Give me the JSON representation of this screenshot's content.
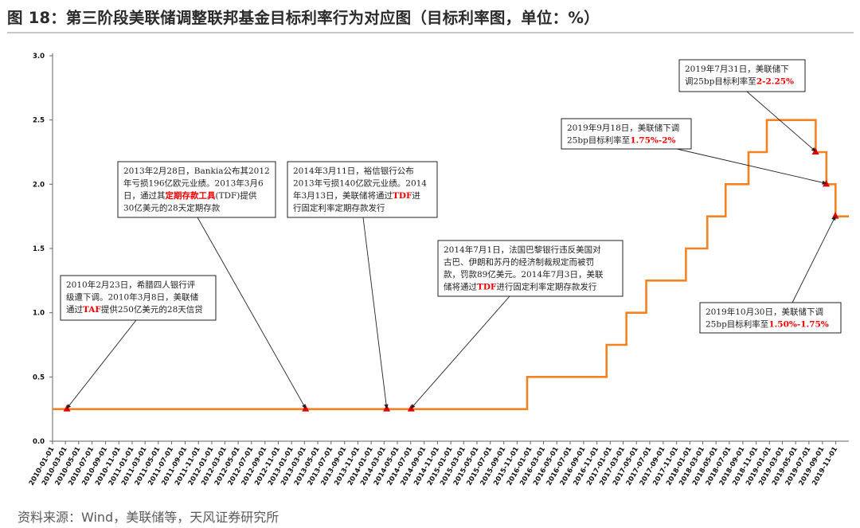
{
  "title": "图 18：第三阶段美联储调整联邦基金目标利率行为对应图（目标利率图，单位：%）",
  "source": "资料来源：Wind，美联储等，天风证券研究所",
  "colors": {
    "line": "#f58220",
    "marker": "#e00000",
    "highlight": "#e00000",
    "arrow": "#222222"
  },
  "chart_data": {
    "type": "line",
    "xlabel": "",
    "ylabel": "",
    "ylim": [
      0.0,
      3.0
    ],
    "yticks": [
      "0.0",
      "0.5",
      "1.0",
      "1.5",
      "2.0",
      "2.5",
      "3.0"
    ],
    "xlim": [
      "2010-01-01",
      "2019-12-31"
    ],
    "xticks": [
      "2010-01-01",
      "2010-03-01",
      "2010-05-01",
      "2010-07-01",
      "2010-09-01",
      "2010-11-01",
      "2011-01-01",
      "2011-03-01",
      "2011-05-01",
      "2011-07-01",
      "2011-09-01",
      "2011-11-01",
      "2012-01-01",
      "2012-03-01",
      "2012-05-01",
      "2012-07-01",
      "2012-09-01",
      "2012-11-01",
      "2013-01-01",
      "2013-03-01",
      "2013-05-01",
      "2013-07-01",
      "2013-09-01",
      "2013-11-01",
      "2014-01-01",
      "2014-03-01",
      "2014-05-01",
      "2014-07-01",
      "2014-09-01",
      "2014-11-01",
      "2015-01-01",
      "2015-03-01",
      "2015-05-01",
      "2015-07-01",
      "2015-09-01",
      "2015-11-01",
      "2016-01-01",
      "2016-03-01",
      "2016-05-01",
      "2016-07-01",
      "2016-09-01",
      "2016-11-01",
      "2017-01-01",
      "2017-03-01",
      "2017-05-01",
      "2017-07-01",
      "2017-09-01",
      "2017-11-01",
      "2018-01-01",
      "2018-03-01",
      "2018-05-01",
      "2018-07-01",
      "2018-09-01",
      "2018-11-01",
      "2019-01-01",
      "2019-03-01",
      "2019-05-01",
      "2019-07-01",
      "2019-09-01",
      "2019-11-01"
    ],
    "series": [
      {
        "name": "",
        "steps": [
          {
            "date": "2010-01-01",
            "value": 0.25
          },
          {
            "date": "2015-12-17",
            "value": 0.5
          },
          {
            "date": "2016-12-15",
            "value": 0.75
          },
          {
            "date": "2017-03-16",
            "value": 1.0
          },
          {
            "date": "2017-06-15",
            "value": 1.25
          },
          {
            "date": "2017-12-14",
            "value": 1.5
          },
          {
            "date": "2018-03-22",
            "value": 1.75
          },
          {
            "date": "2018-06-14",
            "value": 2.0
          },
          {
            "date": "2018-09-27",
            "value": 2.25
          },
          {
            "date": "2018-12-20",
            "value": 2.5
          },
          {
            "date": "2019-08-01",
            "value": 2.25
          },
          {
            "date": "2019-09-19",
            "value": 2.0
          },
          {
            "date": "2019-10-31",
            "value": 1.75
          },
          {
            "date": "2019-12-31",
            "value": 1.75
          }
        ]
      }
    ],
    "markers": [
      {
        "date": "2010-03-08",
        "value": 0.25
      },
      {
        "date": "2013-03-06",
        "value": 0.25
      },
      {
        "date": "2014-03-13",
        "value": 0.25
      },
      {
        "date": "2014-07-03",
        "value": 0.25
      },
      {
        "date": "2019-07-31",
        "value": 2.25
      },
      {
        "date": "2019-09-18",
        "value": 2.0
      },
      {
        "date": "2019-10-30",
        "value": 1.75
      }
    ],
    "annotations": [
      {
        "target": 0,
        "lines": [
          [
            [
              "2010年2月23日，希腊四人银行评",
              false
            ]
          ],
          [
            [
              "级遭下调。2010年3月8日，美联储",
              false
            ]
          ],
          [
            [
              "通过",
              false
            ],
            [
              "TAF",
              true
            ],
            [
              "提供250亿美元的28天信贷",
              false
            ]
          ]
        ]
      },
      {
        "target": 1,
        "lines": [
          [
            [
              "2013年2月28日，Bankia公布其2012",
              false
            ]
          ],
          [
            [
              "年亏损196亿欧元业绩。2013年3月6",
              false
            ]
          ],
          [
            [
              "日，通过其",
              false
            ],
            [
              "定期存款工具",
              true
            ],
            [
              "(TDF)提供",
              false
            ]
          ],
          [
            [
              "30亿美元的28天定期存款",
              false
            ]
          ]
        ]
      },
      {
        "target": 2,
        "lines": [
          [
            [
              "2014年3月11日，裕信银行公布",
              false
            ]
          ],
          [
            [
              "2013年亏损140亿欧元业绩。2014",
              false
            ]
          ],
          [
            [
              "年3月13日，美联储将通过",
              false
            ],
            [
              "TDF",
              true
            ],
            [
              "进",
              false
            ]
          ],
          [
            [
              "行固定利率定期存款发行",
              false
            ]
          ]
        ]
      },
      {
        "target": 3,
        "lines": [
          [
            [
              "2014年7月1日，法国巴黎银行违反美国对",
              false
            ]
          ],
          [
            [
              "古巴、伊朗和苏丹的经济制裁规定而被罚",
              false
            ]
          ],
          [
            [
              "款，罚款89亿美元。2014年7月3日，美联",
              false
            ]
          ],
          [
            [
              "储将通过",
              false
            ],
            [
              "TDF",
              true
            ],
            [
              "进行固定利率定期存款发行",
              false
            ]
          ]
        ]
      },
      {
        "target": 4,
        "lines": [
          [
            [
              "2019年7月31日，美联储下",
              false
            ]
          ],
          [
            [
              "调25bp目标利率至",
              false
            ],
            [
              "2-2.25%",
              true
            ]
          ]
        ]
      },
      {
        "target": 5,
        "lines": [
          [
            [
              "2019年9月18日，美联储下调",
              false
            ]
          ],
          [
            [
              "25bp目标利率至",
              false
            ],
            [
              "1.75%-2%",
              true
            ]
          ]
        ]
      },
      {
        "target": 6,
        "lines": [
          [
            [
              "2019年10月30日，美联储下调",
              false
            ]
          ],
          [
            [
              "25bp目标利率至",
              false
            ],
            [
              "1.50%-1.75%",
              true
            ]
          ]
        ]
      }
    ]
  }
}
